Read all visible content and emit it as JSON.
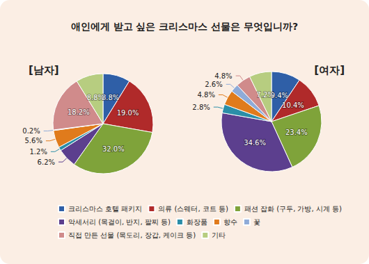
{
  "chart_data": {
    "type": "pie",
    "title": "애인에게 받고 싶은 크리스마스 선물은 무엇입니까?",
    "categories": [
      "크리스마스 호텔 패키지",
      "의류 (스웨터, 코트 등)",
      "패션 잡화 (구두, 가방, 시계 등)",
      "악세서리 (목걸이, 반지, 팔찌 등)",
      "화장품",
      "향수",
      "꽃",
      "직접 만든 선물 (목도리, 장갑, 케이크 등)",
      "기타"
    ],
    "colors": [
      "#2f5fa7",
      "#b02a2a",
      "#7fa33a",
      "#5c3f8e",
      "#2b8ea8",
      "#e07b1c",
      "#8fabd8",
      "#d08b8b",
      "#b7cd80"
    ],
    "series": [
      {
        "name": "[남자]",
        "values": [
          8.8,
          19.0,
          32.0,
          6.2,
          1.2,
          5.6,
          0.2,
          18.2,
          8.8
        ],
        "value_labels": [
          "8.8%",
          "19.0%",
          "32.0%",
          "6.2%",
          "1.2%",
          "5.6%",
          "0.2%",
          "18.2%",
          "8.8%"
        ]
      },
      {
        "name": "[여자]",
        "values": [
          9.4,
          10.4,
          23.4,
          34.6,
          2.8,
          4.8,
          2.6,
          4.8,
          7.2
        ],
        "value_labels": [
          "9.4%",
          "10.4%",
          "23.4%",
          "34.6%",
          "2.8%",
          "4.8%",
          "2.6%",
          "4.8%",
          "7.2%"
        ]
      }
    ],
    "data_labels": true,
    "legend": "bottom"
  }
}
